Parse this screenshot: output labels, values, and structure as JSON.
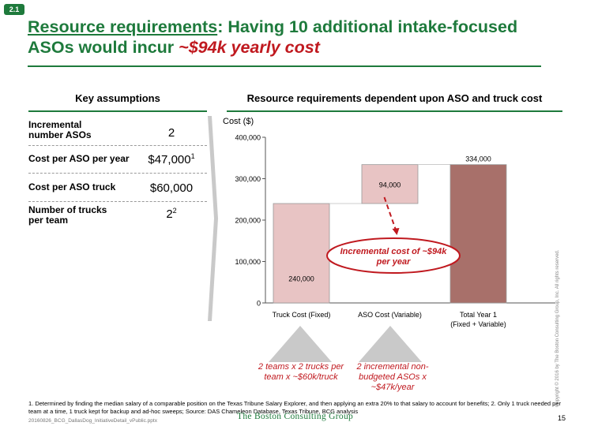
{
  "slide_number": "2.1",
  "title": {
    "part1": "Resource requirements",
    "part2": ": Having 10 additional intake-focused ASOs would incur ",
    "highlight": "~$94k yearly cost"
  },
  "assumptions": {
    "heading": "Key assumptions",
    "rows": [
      {
        "label": "Incremental number ASOs",
        "value": "2",
        "sup": ""
      },
      {
        "label": "Cost per ASO per year",
        "value": "$47,000",
        "sup": "1"
      },
      {
        "label": "Cost per ASO truck",
        "value": "$60,000",
        "sup": ""
      },
      {
        "label": "Number of trucks per team",
        "value": "2",
        "sup": "2"
      }
    ]
  },
  "chart_heading": "Resource requirements dependent upon ASO and truck cost",
  "chart_data": {
    "type": "bar",
    "ylabel": "Cost ($)",
    "ylim": [
      0,
      400000
    ],
    "yticks": [
      "0",
      "100,000",
      "200,000",
      "300,000",
      "400,000"
    ],
    "categories": [
      "Truck Cost (Fixed)",
      "ASO Cost (Variable)",
      "Total Year 1 (Fixed + Variable)"
    ],
    "bars": [
      {
        "category": "Truck Cost (Fixed)",
        "base": 0,
        "value": 240000,
        "label": "240,000",
        "color": "#e8c4c4"
      },
      {
        "category": "ASO Cost (Variable)",
        "base": 240000,
        "value": 94000,
        "label": "94,000",
        "color": "#e8c4c4"
      },
      {
        "category": "Total Year 1 (Fixed + Variable)",
        "base": 0,
        "value": 334000,
        "label": "334,000",
        "color": "#a8706a"
      }
    ],
    "annotation": "Incremental cost of ~$94k per year"
  },
  "under_notes": [
    "2 teams x 2 trucks per team x ~$60k/truck",
    "2 incremental non-budgeted ASOs x ~$47k/year"
  ],
  "footnote": "1. Determined by finding the median salary of a comparable position on the Texas Tribune Salary Explorer, and then applying an extra 20% to that salary to account for benefits; 2. Only 1 truck needed per team at a time, 1 truck kept for backup and ad-hoc sweeps; Source: DAS Chameleon Database, Texas Tribune, BCG analysis",
  "filename": "20160826_BCG_DallasDog_InitiativeDetail_vPublic.pptx",
  "logo": "The Boston Consulting Group",
  "page_number": "15",
  "copyright": "Copyright © 2016 by The Boston Consulting Group, Inc. All rights reserved.",
  "colors": {
    "accent": "#1e7a3c",
    "highlight": "#c0191f"
  }
}
